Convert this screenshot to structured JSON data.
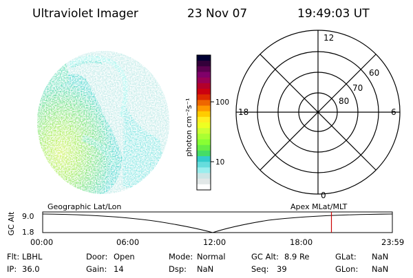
{
  "header": {
    "title": "Ultraviolet Imager",
    "date": "23 Nov 07",
    "time": "19:49:03 UT"
  },
  "colorbar": {
    "label": "photon cm⁻²s⁻¹",
    "tick_labels": [
      "100",
      "10"
    ],
    "colors": [
      "#000033",
      "#33003a",
      "#5c0050",
      "#80006a",
      "#990055",
      "#b3002a",
      "#cc0010",
      "#dd2a00",
      "#ee6600",
      "#ff9900",
      "#ffcc00",
      "#ffee22",
      "#eeff22",
      "#ccff33",
      "#aaff33",
      "#88ff33",
      "#66ee44",
      "#44dd66",
      "#33cccc",
      "#66dddd",
      "#99eeee",
      "#cce5e5",
      "#e2e8e8",
      "#ffffff"
    ]
  },
  "polar": {
    "mlt_labels": {
      "top": "12",
      "bottom": "0",
      "left": "18",
      "right": "6"
    },
    "lat_labels": [
      "60",
      "70",
      "80"
    ]
  },
  "timeline": {
    "left_label": "Geographic Lat/Lon",
    "right_label": "Apex MLat/MLT",
    "y_axis_label": "GC Alt",
    "y_ticks": [
      "9.0",
      "1.8"
    ],
    "x_ticks": [
      "00:00",
      "06:00",
      "12:00",
      "18:00",
      "23:59"
    ],
    "marker_hour": 19.82,
    "marker_color": "#cc0000"
  },
  "status": {
    "row1": [
      {
        "label": "Flt:",
        "value": "LBHL"
      },
      {
        "label": "Door:",
        "value": "Open"
      },
      {
        "label": "Mode:",
        "value": "Normal"
      },
      {
        "label": "GC Alt:",
        "value": "8.9 Re"
      },
      {
        "label": "GLat:",
        "value": "NaN"
      }
    ],
    "row2": [
      {
        "label": "IP:",
        "value": "36.0"
      },
      {
        "label": "Gain:",
        "value": "14"
      },
      {
        "label": "Dsp:",
        "value": "NaN"
      },
      {
        "label": "Seq:",
        "value": "39"
      },
      {
        "label": "GLon:",
        "value": "NaN"
      }
    ]
  }
}
